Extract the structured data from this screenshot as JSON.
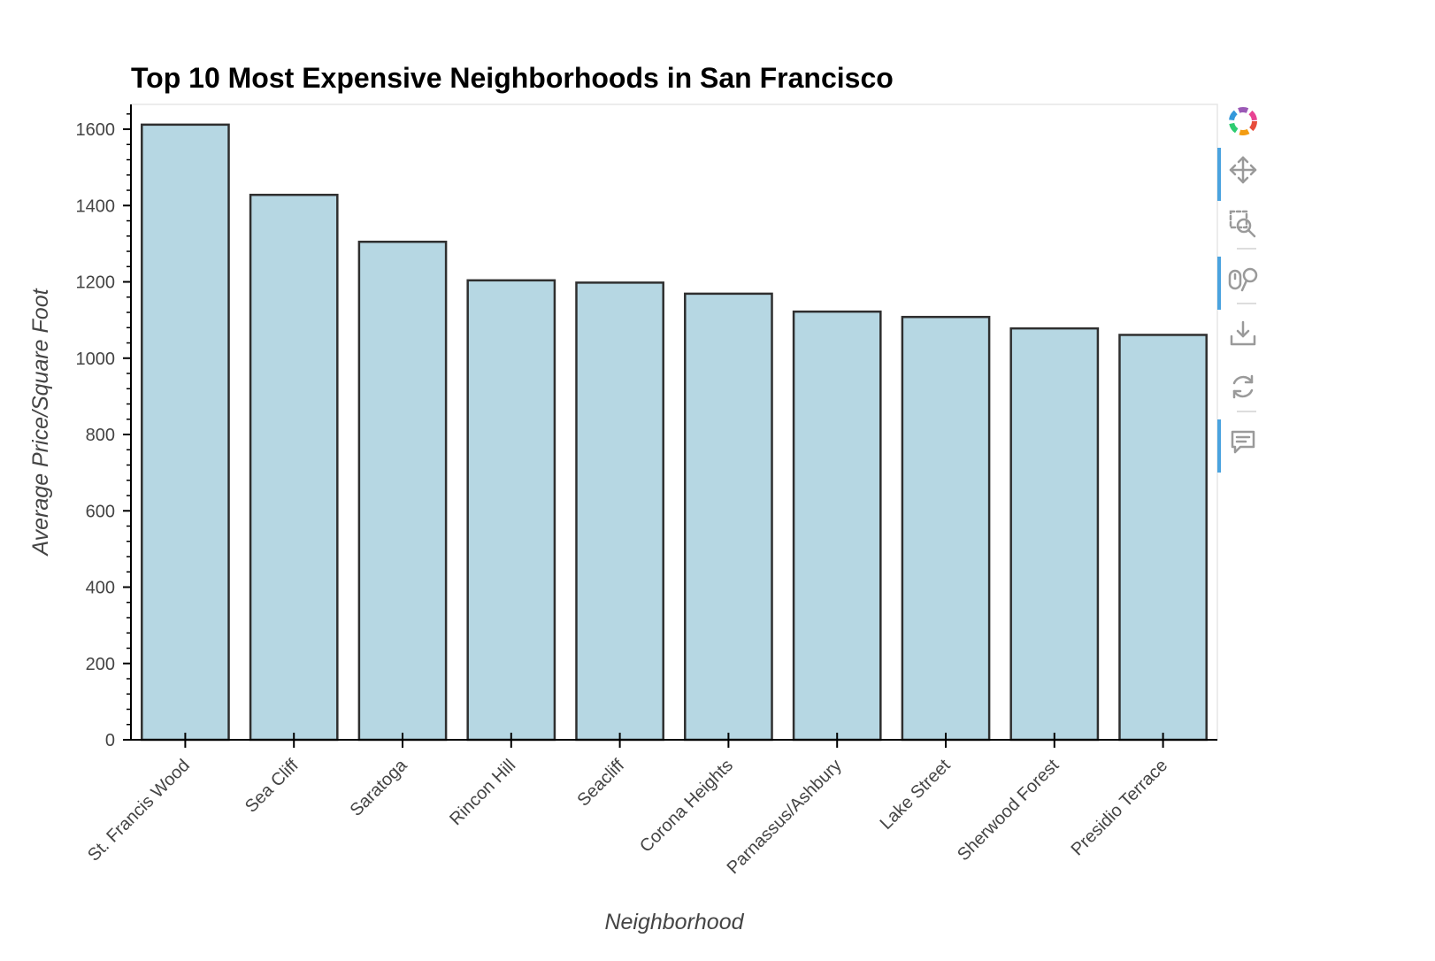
{
  "chart_data": {
    "type": "bar",
    "title": "Top 10 Most Expensive Neighborhoods in San Francisco",
    "xlabel": "Neighborhood",
    "ylabel": "Average Price/Square Foot",
    "categories": [
      "St. Francis Wood",
      "Sea Cliff",
      "Saratoga",
      "Rincon Hill",
      "Seacliff",
      "Corona Heights",
      "Parnassus/Ashbury",
      "Lake Street",
      "Sherwood Forest",
      "Presidio Terrace"
    ],
    "values": [
      1612,
      1428,
      1305,
      1204,
      1198,
      1169,
      1122,
      1108,
      1078,
      1061
    ],
    "ylim": [
      0,
      1665
    ],
    "yticks": [
      "0",
      "200",
      "400",
      "600",
      "800",
      "1000",
      "1200",
      "1400",
      "1600"
    ],
    "bar_color": "#b6d7e3",
    "bar_edge_color": "#2f2f2f",
    "grid": false,
    "legend": "none"
  },
  "toolbar": {
    "tools": [
      {
        "name": "logo-icon",
        "active": false
      },
      {
        "name": "pan-icon",
        "active": true
      },
      {
        "name": "box-zoom-icon",
        "active": false
      },
      {
        "name": "wheel-zoom-icon",
        "active": true
      },
      {
        "name": "save-icon",
        "active": false
      },
      {
        "name": "reset-icon",
        "active": false
      },
      {
        "name": "hover-icon",
        "active": true
      }
    ]
  }
}
